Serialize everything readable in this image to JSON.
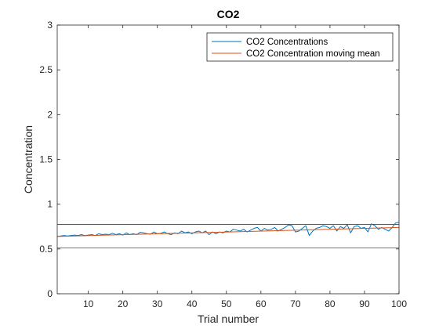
{
  "chart_data": {
    "type": "line",
    "title": "CO2",
    "xlabel": "Trial number",
    "ylabel": "Concentration",
    "xlim": [
      1,
      100
    ],
    "ylim": [
      0,
      3
    ],
    "xticks": [
      10,
      20,
      30,
      40,
      50,
      60,
      70,
      80,
      90,
      100
    ],
    "yticks": [
      0,
      0.5,
      1,
      1.5,
      2,
      2.5,
      3
    ],
    "ytick_labels": [
      "0",
      "0.5",
      "1",
      "1.5",
      "2",
      "2.5",
      "3"
    ],
    "grid": false,
    "legend_position": "top-right",
    "reference_lines": [
      0.51,
      0.775
    ],
    "series": [
      {
        "name": "CO2 Concentrations",
        "color": "#0072BD",
        "x": [
          1,
          2,
          3,
          4,
          5,
          6,
          7,
          8,
          9,
          10,
          11,
          12,
          13,
          14,
          15,
          16,
          17,
          18,
          19,
          20,
          21,
          22,
          23,
          24,
          25,
          26,
          27,
          28,
          29,
          30,
          31,
          32,
          33,
          34,
          35,
          36,
          37,
          38,
          39,
          40,
          41,
          42,
          43,
          44,
          45,
          46,
          47,
          48,
          49,
          50,
          51,
          52,
          53,
          54,
          55,
          56,
          57,
          58,
          59,
          60,
          61,
          62,
          63,
          64,
          65,
          66,
          67,
          68,
          69,
          70,
          71,
          72,
          73,
          74,
          75,
          76,
          77,
          78,
          79,
          80,
          81,
          82,
          83,
          84,
          85,
          86,
          87,
          88,
          89,
          90,
          91,
          92,
          93,
          94,
          95,
          96,
          97,
          98,
          99,
          100
        ],
        "y": [
          0.64,
          0.645,
          0.65,
          0.645,
          0.65,
          0.655,
          0.65,
          0.66,
          0.65,
          0.655,
          0.66,
          0.65,
          0.67,
          0.66,
          0.665,
          0.66,
          0.675,
          0.66,
          0.67,
          0.655,
          0.68,
          0.66,
          0.67,
          0.66,
          0.685,
          0.68,
          0.67,
          0.665,
          0.69,
          0.67,
          0.675,
          0.69,
          0.67,
          0.66,
          0.68,
          0.67,
          0.7,
          0.68,
          0.69,
          0.67,
          0.69,
          0.7,
          0.68,
          0.7,
          0.66,
          0.69,
          0.67,
          0.69,
          0.68,
          0.7,
          0.69,
          0.72,
          0.71,
          0.7,
          0.72,
          0.69,
          0.71,
          0.73,
          0.74,
          0.7,
          0.73,
          0.71,
          0.72,
          0.74,
          0.7,
          0.72,
          0.74,
          0.77,
          0.76,
          0.69,
          0.7,
          0.73,
          0.76,
          0.65,
          0.7,
          0.73,
          0.74,
          0.76,
          0.75,
          0.73,
          0.76,
          0.7,
          0.75,
          0.73,
          0.77,
          0.68,
          0.75,
          0.76,
          0.73,
          0.74,
          0.69,
          0.78,
          0.76,
          0.72,
          0.74,
          0.72,
          0.7,
          0.74,
          0.79,
          0.8
        ]
      },
      {
        "name": "CO2 Concentration moving mean",
        "color": "#D95319",
        "x": [
          1,
          100
        ],
        "y": [
          0.64,
          0.74
        ]
      }
    ]
  }
}
